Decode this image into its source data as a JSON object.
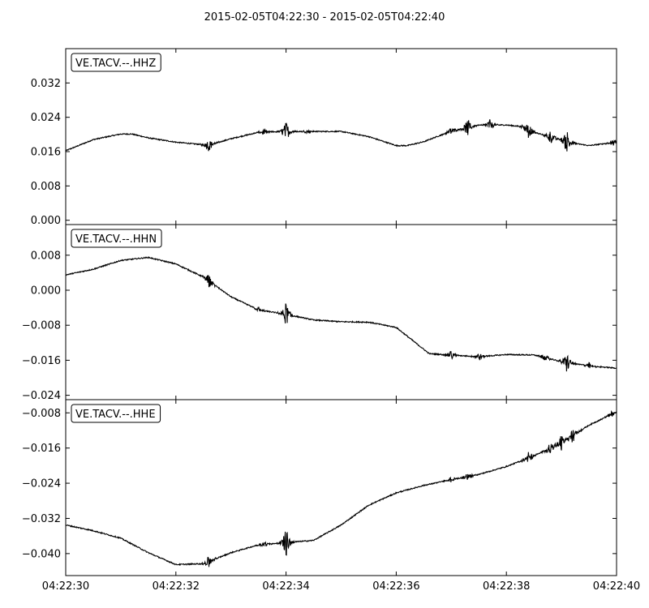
{
  "chart_data": {
    "type": "line",
    "title": "2015-02-05T04:22:30  -  2015-02-05T04:22:40",
    "line_color": "#000000",
    "x_range": [
      "04:22:30",
      "04:22:40"
    ],
    "x_ticks": [
      {
        "t": 0,
        "label": "04:22:30"
      },
      {
        "t": 2,
        "label": "04:22:32"
      },
      {
        "t": 4,
        "label": "04:22:34"
      },
      {
        "t": 6,
        "label": "04:22:36"
      },
      {
        "t": 8,
        "label": "04:22:38"
      },
      {
        "t": 10,
        "label": "04:22:40"
      }
    ],
    "panels": [
      {
        "label": "VE.TACV.--.HHZ",
        "ylim": [
          -0.001,
          0.04
        ],
        "y_ticks": [
          {
            "v": 0.032,
            "label": "0.032"
          },
          {
            "v": 0.024,
            "label": "0.024"
          },
          {
            "v": 0.016,
            "label": "0.016"
          },
          {
            "v": 0.008,
            "label": "0.008"
          },
          {
            "v": 0.0,
            "label": "0.000"
          }
        ],
        "series": [
          {
            "x": [
              0,
              0.5,
              1,
              1.2,
              1.5,
              2,
              2.5,
              2.6,
              3,
              3.5,
              4,
              4.5,
              5,
              5.5,
              6,
              6.2,
              6.5,
              7,
              7.5,
              8,
              8.3,
              8.5,
              9,
              9.2,
              9.5,
              10
            ],
            "y": [
              0.0162,
              0.0188,
              0.0201,
              0.0201,
              0.0192,
              0.0182,
              0.0176,
              0.0175,
              0.019,
              0.0205,
              0.0207,
              0.0207,
              0.0207,
              0.0195,
              0.0174,
              0.0174,
              0.0183,
              0.0208,
              0.0222,
              0.0222,
              0.0218,
              0.0205,
              0.0187,
              0.018,
              0.0174,
              0.0182
            ]
          }
        ],
        "bursts": [
          {
            "t": 2.6,
            "amp": 0.0017
          },
          {
            "t": 3.6,
            "amp": 0.0008
          },
          {
            "t": 4.0,
            "amp": 0.0025
          },
          {
            "t": 4.4,
            "amp": 0.0006
          },
          {
            "t": 7.0,
            "amp": 0.0012
          },
          {
            "t": 7.3,
            "amp": 0.0022
          },
          {
            "t": 7.7,
            "amp": 0.0014
          },
          {
            "t": 8.4,
            "amp": 0.0022
          },
          {
            "t": 8.8,
            "amp": 0.0018
          },
          {
            "t": 9.1,
            "amp": 0.0032
          },
          {
            "t": 9.95,
            "amp": 0.001
          }
        ]
      },
      {
        "label": "VE.TACV.--.HHN",
        "ylim": [
          -0.025,
          0.015
        ],
        "y_ticks": [
          {
            "v": 0.008,
            "label": "0.008"
          },
          {
            "v": 0.0,
            "label": "0.000"
          },
          {
            "v": -0.008,
            "label": "−0.008"
          },
          {
            "v": -0.016,
            "label": "−0.016"
          },
          {
            "v": -0.024,
            "label": "−0.024"
          }
        ],
        "series": [
          {
            "x": [
              0,
              0.5,
              1,
              1.5,
              2,
              2.5,
              3,
              3.5,
              4,
              4.5,
              5,
              5.5,
              6,
              6.3,
              6.6,
              7,
              7.5,
              8,
              8.5,
              9,
              9.5,
              10
            ],
            "y": [
              0.0035,
              0.0048,
              0.0068,
              0.0075,
              0.006,
              0.003,
              -0.0015,
              -0.0045,
              -0.0055,
              -0.0068,
              -0.0072,
              -0.0073,
              -0.0085,
              -0.0115,
              -0.0145,
              -0.0148,
              -0.0152,
              -0.0147,
              -0.0148,
              -0.0163,
              -0.0173,
              -0.0178
            ]
          }
        ],
        "bursts": [
          {
            "t": 2.6,
            "amp": 0.0017
          },
          {
            "t": 3.5,
            "amp": 0.0006
          },
          {
            "t": 4.0,
            "amp": 0.003
          },
          {
            "t": 7.0,
            "amp": 0.0012
          },
          {
            "t": 7.5,
            "amp": 0.001
          },
          {
            "t": 8.7,
            "amp": 0.001
          },
          {
            "t": 9.1,
            "amp": 0.0025
          },
          {
            "t": 9.5,
            "amp": 0.0008
          }
        ]
      },
      {
        "label": "VE.TACV.--.HHE",
        "ylim": [
          -0.045,
          -0.005
        ],
        "y_ticks": [
          {
            "v": -0.008,
            "label": "−0.008"
          },
          {
            "v": -0.016,
            "label": "−0.016"
          },
          {
            "v": -0.024,
            "label": "−0.024"
          },
          {
            "v": -0.032,
            "label": "−0.032"
          },
          {
            "v": -0.04,
            "label": "−0.040"
          }
        ],
        "series": [
          {
            "x": [
              0,
              0.5,
              1,
              1.5,
              2,
              2.5,
              3,
              3.5,
              4,
              4.5,
              5,
              5.5,
              6,
              6.5,
              7,
              7.5,
              8,
              8.5,
              9,
              9.5,
              10
            ],
            "y": [
              -0.0335,
              -0.0348,
              -0.0365,
              -0.0398,
              -0.0425,
              -0.0423,
              -0.0398,
              -0.038,
              -0.0375,
              -0.037,
              -0.0335,
              -0.029,
              -0.0262,
              -0.0245,
              -0.0232,
              -0.022,
              -0.0202,
              -0.0178,
              -0.0148,
              -0.0108,
              -0.0078
            ]
          }
        ],
        "bursts": [
          {
            "t": 2.6,
            "amp": 0.0015
          },
          {
            "t": 3.6,
            "amp": 0.0008
          },
          {
            "t": 4.0,
            "amp": 0.0035
          },
          {
            "t": 7.0,
            "amp": 0.0008
          },
          {
            "t": 7.3,
            "amp": 0.0012
          },
          {
            "t": 8.4,
            "amp": 0.0018
          },
          {
            "t": 8.8,
            "amp": 0.0015
          },
          {
            "t": 9.0,
            "amp": 0.002
          },
          {
            "t": 9.2,
            "amp": 0.002
          },
          {
            "t": 9.9,
            "amp": 0.0008
          }
        ]
      }
    ]
  }
}
